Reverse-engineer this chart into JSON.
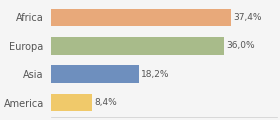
{
  "categories": [
    "America",
    "Asia",
    "Europa",
    "Africa"
  ],
  "values": [
    8.4,
    18.2,
    36.0,
    37.4
  ],
  "labels": [
    "8,4%",
    "18,2%",
    "36,0%",
    "37,4%"
  ],
  "bar_colors": [
    "#f0c96a",
    "#6e8fbe",
    "#a8bb8a",
    "#e8a97a"
  ],
  "background_color": "#f5f5f5",
  "xlim": [
    0,
    47
  ],
  "bar_height": 0.62,
  "label_fontsize": 6.5,
  "tick_fontsize": 7.0,
  "label_color": "#555555",
  "tick_color": "#555555",
  "spine_color": "#cccccc"
}
